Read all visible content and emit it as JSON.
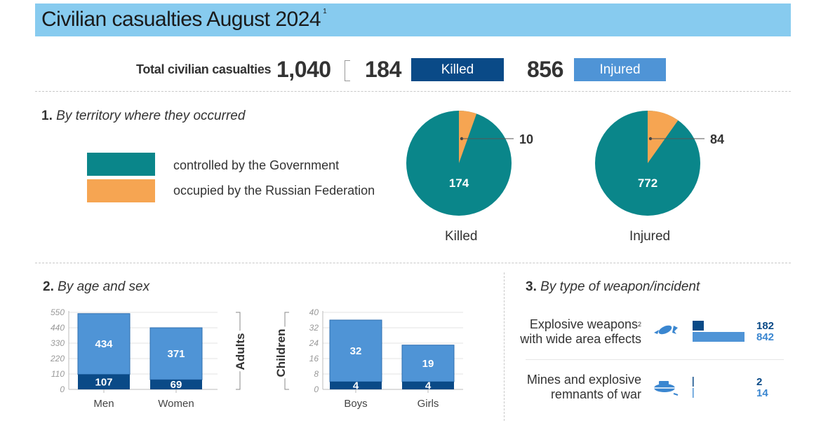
{
  "title": "Civilian casualties August 2024",
  "title_footnote": "1",
  "totals": {
    "label": "Total civilian casualties",
    "total": "1,040",
    "killed": "184",
    "killed_label": "Killed",
    "injured": "856",
    "injured_label": "Injured"
  },
  "colors": {
    "killed": "#0a4a87",
    "injured": "#4f94d6",
    "government": "#0a868a",
    "occupied": "#f6a552",
    "title_bar": "#87cbef"
  },
  "section1": {
    "num": "1.",
    "title": "By territory where they occurred",
    "legend": [
      "controlled by the Government",
      "occupied by the Russian Federation"
    ]
  },
  "section2": {
    "num": "2.",
    "title": "By age and sex",
    "adults_label": "Adults",
    "children_label": "Children"
  },
  "section3": {
    "num": "3.",
    "title": "By type of weapon/incident",
    "rows": [
      {
        "line1": "Explosive weapons",
        "line2": "with wide area effects",
        "footnote": "2",
        "icon": "explosive-icon",
        "killed": "182",
        "injured": "842"
      },
      {
        "line1": "Mines and explosive",
        "line2": "remnants of war",
        "footnote": "",
        "icon": "mine-icon",
        "killed": "2",
        "injured": "14"
      }
    ]
  },
  "chart_data": [
    {
      "type": "pie",
      "title": "Killed",
      "slices": [
        {
          "name": "controlled by the Government",
          "value": 174
        },
        {
          "name": "occupied by the Russian Federation",
          "value": 10
        }
      ]
    },
    {
      "type": "pie",
      "title": "Injured",
      "slices": [
        {
          "name": "controlled by the Government",
          "value": 772
        },
        {
          "name": "occupied by the Russian Federation",
          "value": 84
        }
      ]
    },
    {
      "type": "bar",
      "group": "Adults",
      "categories": [
        "Men",
        "Women"
      ],
      "stacked": true,
      "series": [
        {
          "name": "Killed",
          "values": [
            107,
            69
          ]
        },
        {
          "name": "Injured",
          "values": [
            434,
            371
          ]
        }
      ],
      "yticks": [
        0,
        110,
        220,
        330,
        440,
        550
      ],
      "ylim": [
        0,
        550
      ]
    },
    {
      "type": "bar",
      "group": "Children",
      "categories": [
        "Boys",
        "Girls"
      ],
      "stacked": true,
      "series": [
        {
          "name": "Killed",
          "values": [
            4,
            4
          ]
        },
        {
          "name": "Injured",
          "values": [
            32,
            19
          ]
        }
      ],
      "yticks": [
        0,
        8,
        16,
        24,
        32,
        40
      ],
      "ylim": [
        0,
        40
      ]
    },
    {
      "type": "bar",
      "orientation": "horizontal",
      "categories": [
        "Explosive weapons with wide area effects",
        "Mines and explosive remnants of war"
      ],
      "series": [
        {
          "name": "Killed",
          "values": [
            182,
            2
          ]
        },
        {
          "name": "Injured",
          "values": [
            842,
            14
          ]
        }
      ]
    }
  ]
}
